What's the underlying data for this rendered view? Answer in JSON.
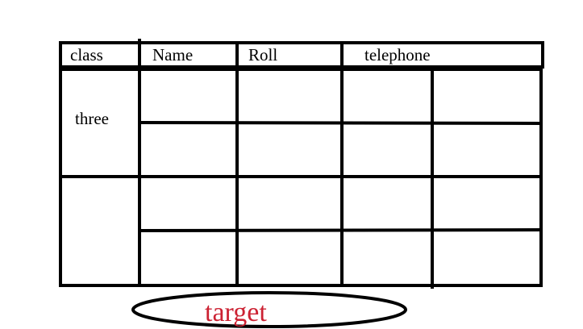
{
  "table": {
    "headers": {
      "class": "class",
      "name": "Name",
      "roll": "Roll",
      "telephone": "telephone"
    },
    "class_value": "three"
  },
  "annotation": {
    "label": "target",
    "color": "#cc2233"
  }
}
